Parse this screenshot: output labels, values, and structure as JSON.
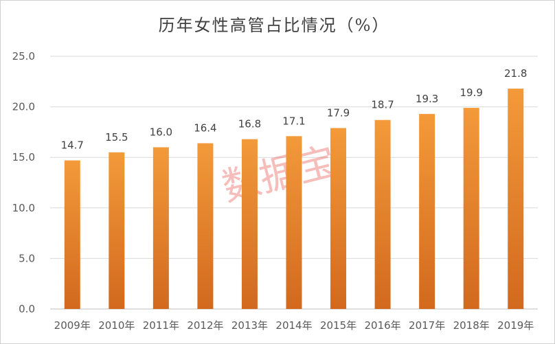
{
  "chart_data": {
    "type": "bar",
    "title": "历年女性高管占比情况（%）",
    "xlabel": "",
    "ylabel": "",
    "categories": [
      "2009年",
      "2010年",
      "2011年",
      "2012年",
      "2013年",
      "2014年",
      "2015年",
      "2016年",
      "2017年",
      "2018年",
      "2019年"
    ],
    "values": [
      14.7,
      15.5,
      16.0,
      16.4,
      16.8,
      17.1,
      17.9,
      18.7,
      19.3,
      19.9,
      21.8
    ],
    "data_labels": [
      "14.7",
      "15.5",
      "16.0",
      "16.4",
      "16.8",
      "17.1",
      "17.9",
      "18.7",
      "19.3",
      "19.9",
      "21.8"
    ],
    "ylim": [
      0,
      25
    ],
    "yticks": [
      "0.0",
      "5.0",
      "10.0",
      "15.0",
      "20.0",
      "25.0"
    ],
    "grid": true,
    "legend": "none",
    "bar_color_top": "#f39a3a",
    "bar_color_bottom": "#d2691e",
    "watermark": "数据宝",
    "watermark_color": "#e8453c"
  }
}
